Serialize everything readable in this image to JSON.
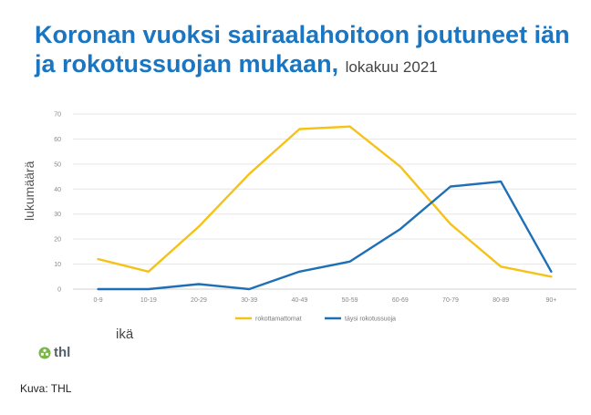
{
  "title": "Koronan vuoksi sairaalahoitoon joutuneet iän ja rokotussuojan mukaan,",
  "subtitle": "lokakuu 2021",
  "logo_text": "thl",
  "caption": "Kuva: THL",
  "colors": {
    "title": "#1a76c2",
    "unvaccinated": "#f5c219",
    "vaccinated": "#1f6fb6"
  },
  "chart_data": {
    "type": "line",
    "title": "Koronan vuoksi sairaalahoitoon joutuneet iän ja rokotussuojan mukaan, lokakuu 2021",
    "xlabel": "ikä",
    "ylabel": "lukumäärä",
    "categories": [
      "0-9",
      "10-19",
      "20-29",
      "30-39",
      "40-49",
      "50-59",
      "60-69",
      "70-79",
      "80-89",
      "90+"
    ],
    "ylim": [
      0,
      70
    ],
    "yticks": [
      0,
      10,
      20,
      30,
      40,
      50,
      60,
      70
    ],
    "grid": true,
    "legend": "bottom",
    "series": [
      {
        "name": "rokottamattomat",
        "color": "#f5c219",
        "values": [
          12,
          7,
          25,
          46,
          64,
          65,
          49,
          26,
          9,
          5
        ]
      },
      {
        "name": "täysi rokotussuoja",
        "color": "#1f6fb6",
        "values": [
          0,
          0,
          2,
          0,
          7,
          11,
          24,
          41,
          43,
          7
        ]
      }
    ]
  }
}
